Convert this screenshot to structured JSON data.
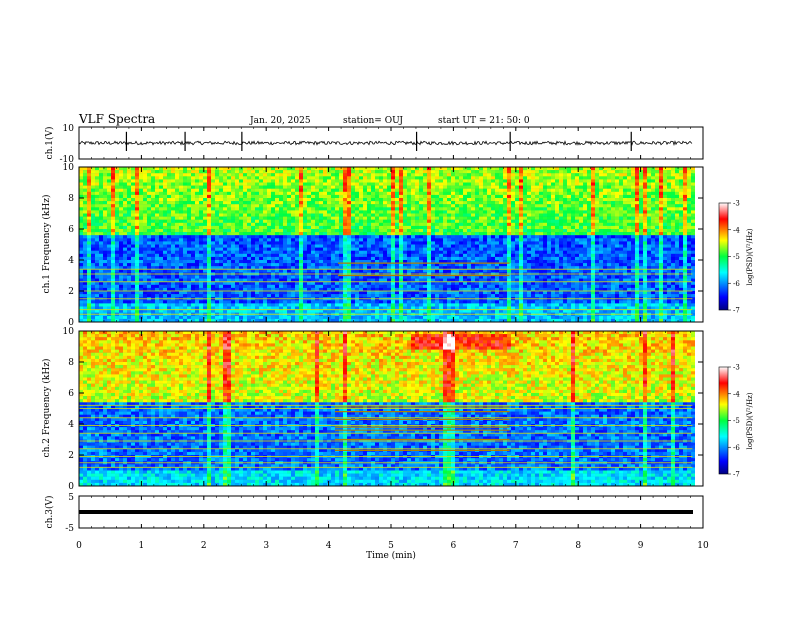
{
  "header": {
    "title": "VLF Spectra",
    "date": "Jan. 20, 2025",
    "station": "station= OUJ",
    "start": "start  UT  =   21: 50: 0"
  },
  "chart_data": [
    {
      "type": "line",
      "name": "ch1-waveform",
      "ylabel": "ch.1(V)",
      "ylim": [
        -10,
        10
      ],
      "ytick_labels": [
        "10",
        "-10"
      ],
      "baseline": 0,
      "spikes": [
        0.76,
        1.7,
        2.61,
        5.41,
        6.91,
        8.85
      ]
    },
    {
      "type": "heatmap",
      "name": "ch1-spectrogram",
      "ylabel": "ch.1 Frequency (kHz)",
      "ylim": [
        0,
        10
      ],
      "ytick_labels": [
        "0",
        "2",
        "4",
        "6",
        "8",
        "10"
      ],
      "colorbar": {
        "label": "log(PSD)(V²/Hz)",
        "range": [
          -7,
          -3
        ],
        "tick_labels": [
          "-3",
          "-4",
          "-5",
          "-6",
          "-7"
        ]
      },
      "lines_khz": [
        0.5,
        0.8,
        1.5,
        2.0,
        2.6,
        3.1,
        3.4
      ],
      "segment_lines": {
        "t_start_min": 4.15,
        "t_end_min": 6.9,
        "freq_khz": [
          3.0,
          3.8
        ]
      }
    },
    {
      "type": "heatmap",
      "name": "ch2-spectrogram",
      "ylabel": "ch.2 Frequency (kHz)",
      "ylim": [
        0,
        10
      ],
      "ytick_labels": [
        "0",
        "2",
        "4",
        "6",
        "8",
        "10"
      ],
      "colorbar": {
        "label": "log(PSD)(V²/Hz)",
        "range": [
          -7,
          -3
        ],
        "tick_labels": [
          "-3",
          "-4",
          "-5",
          "-6",
          "-7"
        ]
      },
      "lines_khz": [
        1.2,
        1.5,
        1.9,
        2.4,
        2.9,
        3.4,
        3.9,
        4.4,
        5.0,
        5.2
      ],
      "segment_lines": {
        "t_start_min": 4.1,
        "t_end_min": 6.9,
        "freq_khz": [
          2.3,
          3.0,
          3.6,
          3.8,
          4.3,
          4.8,
          5.1
        ]
      },
      "burst": {
        "t_start_min": 5.3,
        "t_end_min": 6.9,
        "freq_khz": [
          8.8,
          9.9
        ]
      }
    },
    {
      "type": "line",
      "name": "ch3-waveform",
      "ylabel": "ch.3(V)",
      "ylim": [
        -5,
        5
      ],
      "ytick_labels": [
        "5",
        "0",
        "-5"
      ],
      "baseline": 0
    }
  ],
  "x_axis": {
    "label": "Time (min)",
    "range": [
      0,
      10
    ],
    "tick_labels": [
      "0",
      "1",
      "2",
      "3",
      "4",
      "5",
      "6",
      "7",
      "8",
      "9",
      "10"
    ],
    "data_end_min": 9.83
  }
}
